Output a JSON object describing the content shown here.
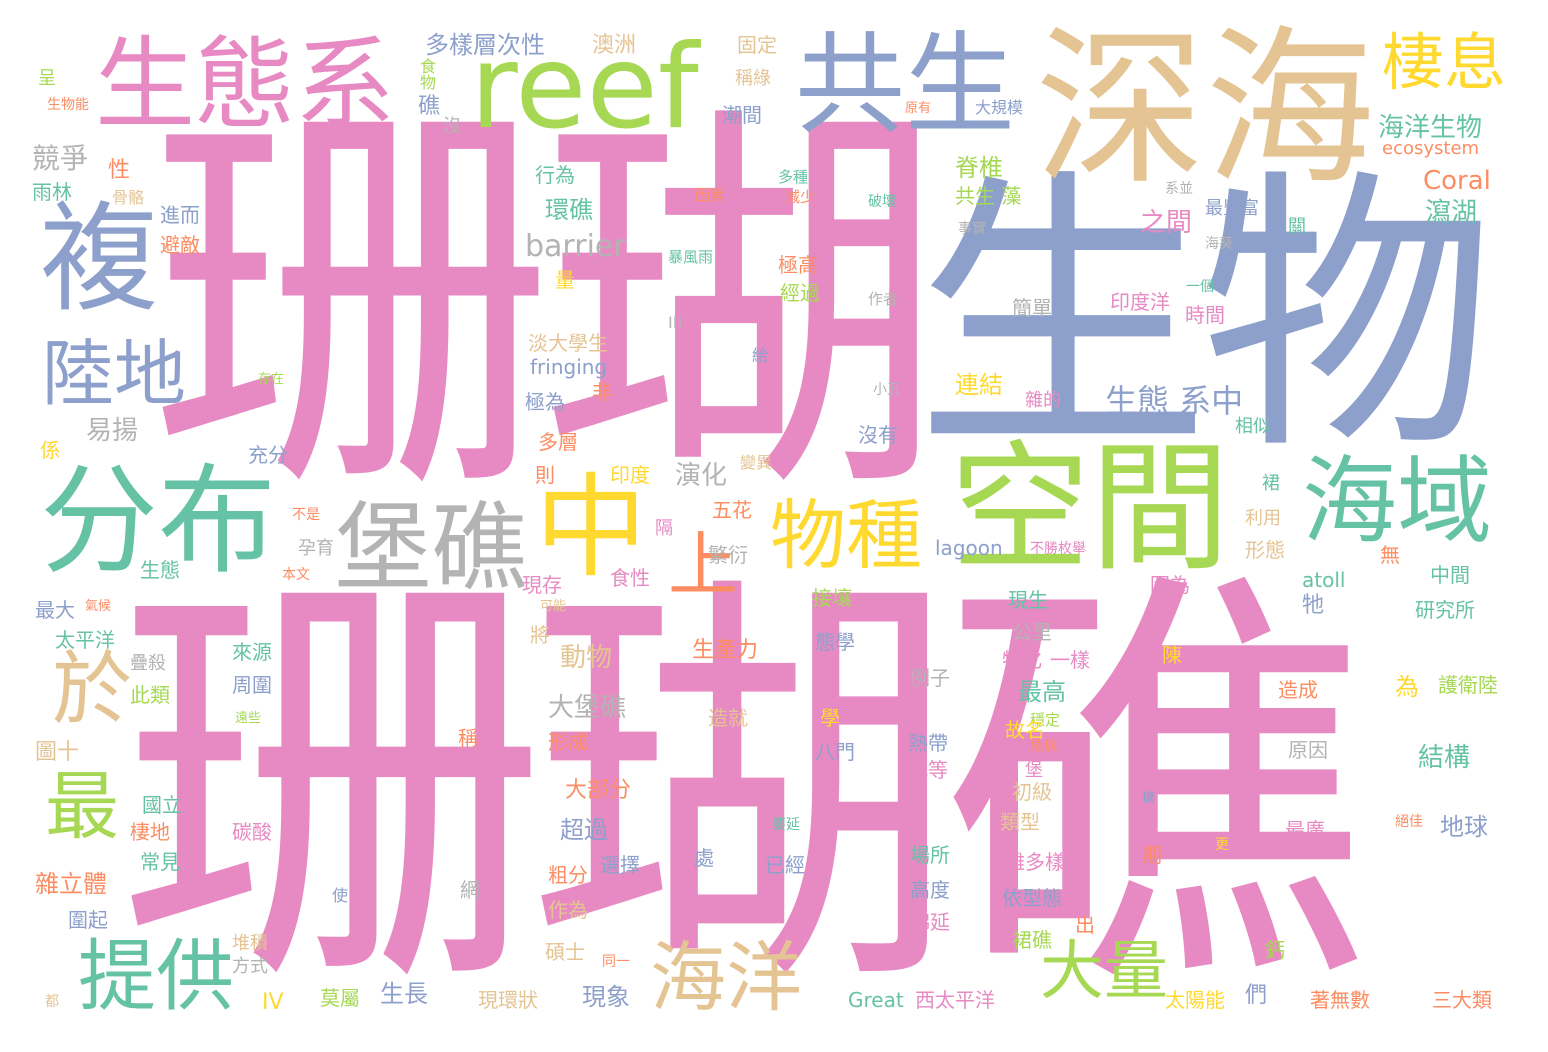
{
  "palette": {
    "pink": "#e78ac3",
    "blue": "#8da0cb",
    "green": "#66c2a5",
    "lime": "#a6d854",
    "orange": "#fc8d62",
    "yellow": "#ffd92f",
    "tan": "#e5c494",
    "gray": "#b3b3b3"
  },
  "words": [
    "珊瑚",
    "珊瑚礁",
    "生物",
    "深海",
    "生態系",
    "reef",
    "共生",
    "棲息",
    "複",
    "陸地",
    "分布",
    "空間",
    "海域",
    "堡礁",
    "中",
    "物種",
    "上",
    "最",
    "於",
    "提供",
    "海洋",
    "大量",
    "多樣層次性",
    "澳洲",
    "固定",
    "稱綠",
    "潮間",
    "食物",
    "礁",
    "沒",
    "生物能",
    "呈",
    "原有",
    "大規模",
    "海洋生物",
    "ecosystem",
    "Coral",
    "脊椎",
    "共生 藻",
    "行為",
    "多種",
    "減少",
    "因素",
    "破壞",
    "系並",
    "最豐富",
    "環礁",
    "進而",
    "避敵",
    "骨骼",
    "性",
    "競爭",
    "雨林",
    "barrier",
    "之間",
    "瀉湖",
    "長",
    "極高",
    "經過",
    "暴風雨",
    "量",
    "事實",
    "海葵",
    "關",
    "印度洋",
    "時間",
    "一個",
    "簡單",
    "作者",
    "III",
    "淡大學生",
    "fringing",
    "給",
    "生態 系中",
    "存在",
    "小丑",
    "連結",
    "雜的",
    "極為",
    "易揚",
    "非",
    "沒有",
    "相似",
    "多層",
    "則",
    "印度",
    "變異",
    "充分",
    "演化",
    "係",
    "裙",
    "五花",
    "隔",
    "不是",
    "繁衍",
    "lagoon",
    "不勝枚舉",
    "利用",
    "孕育",
    "生態",
    "本文",
    "現存",
    "食性",
    "形態",
    "無",
    "因為",
    "可能",
    "接壤",
    "atoll",
    "中間",
    "最大",
    "氣候",
    "太平洋",
    "將",
    "牠",
    "現生",
    "研究所",
    "動物",
    "態學",
    "公里",
    "陳",
    "來源",
    "生產力",
    "特化",
    "一樣",
    "疊殺",
    "周圍",
    "最高",
    "為",
    "護衛陸",
    "此類",
    "例子",
    "大堡礁",
    "造就",
    "學",
    "穩定",
    "造成",
    "故名",
    "遠些",
    "圖十",
    "形成",
    "八門",
    "熱帶",
    "魚與",
    "此等",
    "堡",
    "原因",
    "結構",
    "稱",
    "國立",
    "大部分",
    "初級",
    "擴",
    "棲地",
    "碳酸",
    "要延",
    "類型",
    "絕佳",
    "地球",
    "超過",
    "最廣",
    "期",
    "常見",
    "處",
    "場所",
    "雜立體",
    "粗分",
    "選擇",
    "已經",
    "雜多樣",
    "更",
    "作為",
    "網",
    "依型態",
    "高度",
    "使",
    "圍起",
    "綿延",
    "裙礁",
    "出",
    "堆積",
    "碩士",
    "鈣",
    "方式",
    "同一",
    "都",
    "莫屬",
    "生長",
    "現環狀",
    "現象",
    "們",
    "Great",
    "西太平洋",
    "太陽能",
    "著無數",
    "三大類",
    "IV"
  ]
}
